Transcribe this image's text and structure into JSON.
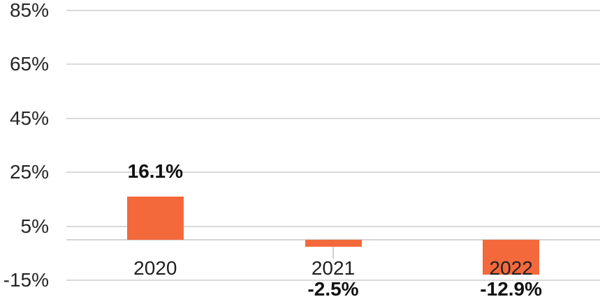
{
  "chart_data": {
    "type": "bar",
    "title": "",
    "xlabel": "",
    "ylabel": "",
    "categories": [
      "2020",
      "2021",
      "2022"
    ],
    "values": [
      16.1,
      -2.5,
      -12.9
    ],
    "value_labels": [
      "16.1%",
      "-2.5%",
      "-12.9%"
    ],
    "yticks": [
      {
        "value": 85,
        "label": "85%"
      },
      {
        "value": 65,
        "label": "65%"
      },
      {
        "value": 45,
        "label": "45%"
      },
      {
        "value": 25,
        "label": "25%"
      },
      {
        "value": 5,
        "label": "5%"
      },
      {
        "value": -15,
        "label": "-15%"
      }
    ],
    "ylim": [
      -15,
      85
    ],
    "grid": "horizontal",
    "zero_baseline": true,
    "legend": "none",
    "leader_line_categories": [
      "2021"
    ],
    "colors": {
      "bar": "#F4693B",
      "gridline": "#D9D9D9",
      "zero_line": "#D4D4D4",
      "leader_line": "#CFCFCF",
      "tick_text": "#262626",
      "value_text": "#111111"
    }
  }
}
